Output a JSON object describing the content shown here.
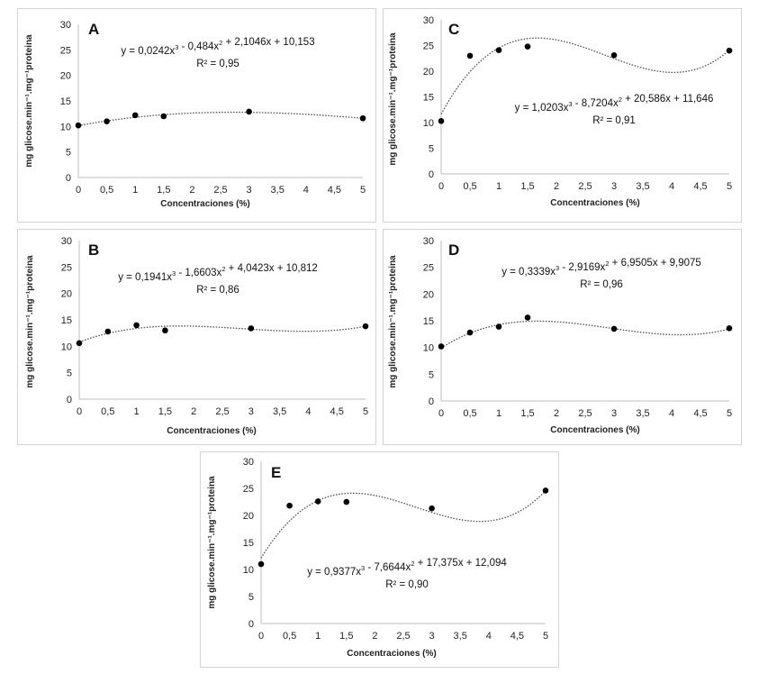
{
  "chart_data": [
    {
      "type": "scatter",
      "panel": "A",
      "equation": "y = 0,0242x³ - 0,484x² + 2,1046x + 10,153",
      "r2": "R² = 0,95",
      "coefficients": [
        0.0242,
        -0.484,
        2.1046,
        10.153
      ],
      "x": [
        0,
        0.5,
        1,
        1.5,
        3,
        5
      ],
      "y": [
        10.2,
        11.0,
        12.2,
        12.0,
        12.9,
        11.6
      ],
      "xlabel": "Concentraciones (%)",
      "ylabel": "mg glicose.min⁻¹.mg⁻¹proteina",
      "xlim": [
        0,
        5
      ],
      "ylim": [
        0,
        30
      ],
      "xticks": [
        "0",
        "0,5",
        "1",
        "1,5",
        "2",
        "2,5",
        "3",
        "3,5",
        "4",
        "4,5",
        "5"
      ],
      "yticks": [
        "0",
        "5",
        "10",
        "15",
        "20",
        "25",
        "30"
      ],
      "trendline": "polynomial-order-3"
    },
    {
      "type": "scatter",
      "panel": "C",
      "equation": "y = 1,0203x³ - 8,7204x² + 20,586x + 11,646",
      "r2": "R² = 0,91",
      "coefficients": [
        1.0203,
        -8.7204,
        20.586,
        11.646
      ],
      "x": [
        0,
        0.5,
        1,
        1.5,
        3,
        5
      ],
      "y": [
        10.3,
        23.0,
        24.1,
        24.8,
        23.1,
        24.0
      ],
      "xlabel": "Concentraciones (%)",
      "ylabel": "mg glicose.min⁻¹.mg⁻¹proteina",
      "xlim": [
        0,
        5
      ],
      "ylim": [
        0,
        30
      ],
      "xticks": [
        "0",
        "0,5",
        "1",
        "1,5",
        "2",
        "2,5",
        "3",
        "3,5",
        "4",
        "4,5",
        "5"
      ],
      "yticks": [
        "0",
        "5",
        "10",
        "15",
        "20",
        "25",
        "30"
      ],
      "trendline": "polynomial-order-3"
    },
    {
      "type": "scatter",
      "panel": "B",
      "equation": "y = 0,1941x³ - 1,6603x² + 4,0423x + 10,812",
      "r2": "R² = 0,86",
      "coefficients": [
        0.1941,
        -1.6603,
        4.0423,
        10.812
      ],
      "x": [
        0,
        0.5,
        1,
        1.5,
        3,
        5
      ],
      "y": [
        10.6,
        12.8,
        14.0,
        13.0,
        13.4,
        13.8
      ],
      "xlabel": "Concentraciones (%)",
      "ylabel": "mg glicose.min⁻¹.mg⁻¹proteina",
      "xlim": [
        0,
        5
      ],
      "ylim": [
        0,
        30
      ],
      "xticks": [
        "0",
        "0,5",
        "1",
        "1,5",
        "2",
        "2,5",
        "3",
        "3,5",
        "4",
        "4,5",
        "5"
      ],
      "yticks": [
        "0",
        "5",
        "10",
        "15",
        "20",
        "25",
        "30"
      ],
      "trendline": "polynomial-order-3"
    },
    {
      "type": "scatter",
      "panel": "D",
      "equation": "y = 0,3339x³ - 2,9169x² + 6,9505x + 9,9075",
      "r2": "R² = 0,96",
      "coefficients": [
        0.3339,
        -2.9169,
        6.9505,
        9.9075
      ],
      "x": [
        0,
        0.5,
        1,
        1.5,
        3,
        5
      ],
      "y": [
        10.2,
        12.8,
        13.9,
        15.6,
        13.5,
        13.6
      ],
      "xlabel": "Concentraciones (%)",
      "ylabel": "mg glicose.min⁻¹.mg⁻¹proteina",
      "xlim": [
        0,
        5
      ],
      "ylim": [
        0,
        30
      ],
      "xticks": [
        "0",
        "0,5",
        "1",
        "1,5",
        "2",
        "2,5",
        "3",
        "3,5",
        "4",
        "4,5",
        "5"
      ],
      "yticks": [
        "0",
        "5",
        "10",
        "15",
        "20",
        "25",
        "30"
      ],
      "trendline": "polynomial-order-3"
    },
    {
      "type": "scatter",
      "panel": "E",
      "equation": "y = 0,9377x³ - 7,6644x² + 17,375x + 12,094",
      "r2": "R² = 0,90",
      "coefficients": [
        0.9377,
        -7.6644,
        17.375,
        12.094
      ],
      "x": [
        0,
        0.5,
        1,
        1.5,
        3,
        5
      ],
      "y": [
        11.0,
        21.8,
        22.6,
        22.5,
        21.3,
        24.6
      ],
      "xlabel": "Concentraciones (%)",
      "ylabel": "mg glicose.min⁻¹.mg⁻¹proteina",
      "xlim": [
        0,
        5
      ],
      "ylim": [
        0,
        30
      ],
      "xticks": [
        "0",
        "0,5",
        "1",
        "1,5",
        "2",
        "2,5",
        "3",
        "3,5",
        "4",
        "4,5",
        "5"
      ],
      "yticks": [
        "0",
        "5",
        "10",
        "15",
        "20",
        "25",
        "30"
      ],
      "trendline": "polynomial-order-3"
    }
  ],
  "colors": {
    "points": "#000000",
    "trendline": "#555555",
    "axis": "#bdbdbd",
    "frame": "#d4d4d4"
  }
}
